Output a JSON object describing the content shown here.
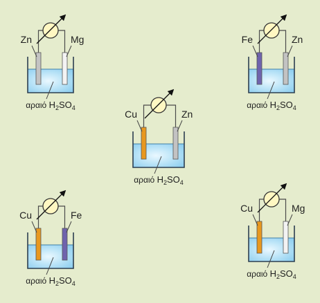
{
  "background": "#e5eccd",
  "colors": {
    "electrolyte_top": "#9fd6f2",
    "electrolyte_bottom": "#c9ecfb",
    "wire": "#4a4a4a",
    "meter_fill": "#fff7c2",
    "electrodes": {
      "Zn": "#c3c3c3",
      "Mg": "#f3f3f3",
      "Fe": "#6f63ad",
      "Cu": "#e8981f"
    }
  },
  "cells": [
    {
      "id": "zn-mg",
      "left_electrode": "Zn",
      "right_electrode": "Mg",
      "solution": {
        "prefix": "αραιό",
        "formula_a": "H",
        "sub_a": "2",
        "formula_b": "SO",
        "sub_b": "4"
      }
    },
    {
      "id": "fe-zn",
      "left_electrode": "Fe",
      "right_electrode": "Zn",
      "solution": {
        "prefix": "αραιό",
        "formula_a": "H",
        "sub_a": "2",
        "formula_b": "SO",
        "sub_b": "4"
      }
    },
    {
      "id": "cu-zn",
      "left_electrode": "Cu",
      "right_electrode": "Zn",
      "solution": {
        "prefix": "αραιό",
        "formula_a": "H",
        "sub_a": "2",
        "formula_b": "SO",
        "sub_b": "4"
      }
    },
    {
      "id": "cu-fe",
      "left_electrode": "Cu",
      "right_electrode": "Fe",
      "solution": {
        "prefix": "αραιό",
        "formula_a": "H",
        "sub_a": "2",
        "formula_b": "SO",
        "sub_b": "4"
      }
    },
    {
      "id": "cu-mg",
      "left_electrode": "Cu",
      "right_electrode": "Mg",
      "solution": {
        "prefix": "αραιό",
        "formula_a": "H",
        "sub_a": "2",
        "formula_b": "SO",
        "sub_b": "4"
      }
    }
  ]
}
